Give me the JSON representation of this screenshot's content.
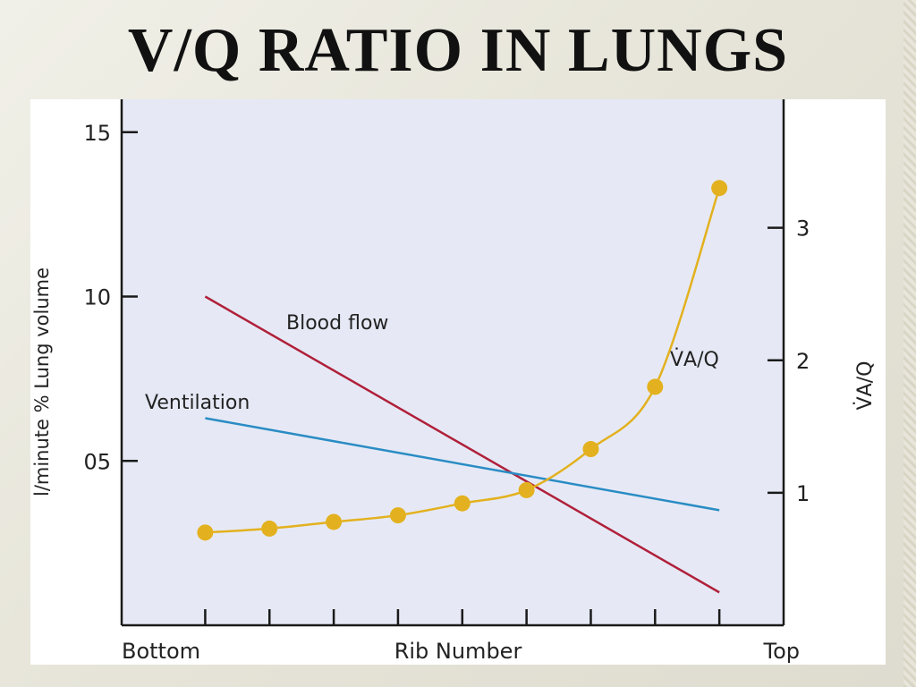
{
  "slide": {
    "title": "V/Q RATIO IN LUNGS"
  },
  "colors": {
    "plot_background": "#e6e9f5",
    "blood_flow": "#b0203a",
    "ventilation": "#2a8cc4",
    "vq_ratio": "#e3b11f",
    "axis": "#1a1a1a"
  },
  "chart_data": {
    "type": "line",
    "title": "",
    "xlabel": "Rib Number",
    "x_end_labels": [
      "Bottom",
      "Top"
    ],
    "x": [
      1,
      2,
      3,
      4,
      5,
      6,
      7,
      8,
      9
    ],
    "xlim": [
      -0.3,
      10
    ],
    "ylabel_left": "l/minute % Lung volume",
    "left_ticks": [
      {
        "value": 15,
        "label": "15"
      },
      {
        "value": 10,
        "label": "10"
      },
      {
        "value": 5,
        "label": "05"
      }
    ],
    "ylim_left": [
      0,
      16
    ],
    "ylabel_right": "V̇A/Q",
    "right_ticks": [
      {
        "value": 3,
        "label": "3"
      },
      {
        "value": 2,
        "label": "2"
      },
      {
        "value": 1,
        "label": "1"
      }
    ],
    "ylim_right": [
      0,
      3.97
    ],
    "grid": false,
    "series": [
      {
        "name": "Blood flow",
        "axis": "left",
        "x": [
          1,
          9
        ],
        "values": [
          10.0,
          1.0
        ]
      },
      {
        "name": "Ventilation",
        "axis": "left",
        "x": [
          1,
          9
        ],
        "values": [
          6.3,
          3.5
        ]
      },
      {
        "name": "V̇A/Q",
        "axis": "right",
        "markers": true,
        "x": [
          1,
          2,
          3,
          4,
          5,
          6,
          7,
          8,
          9
        ],
        "values": [
          0.7,
          0.73,
          0.78,
          0.83,
          0.92,
          1.02,
          1.33,
          1.8,
          3.3
        ]
      }
    ]
  }
}
